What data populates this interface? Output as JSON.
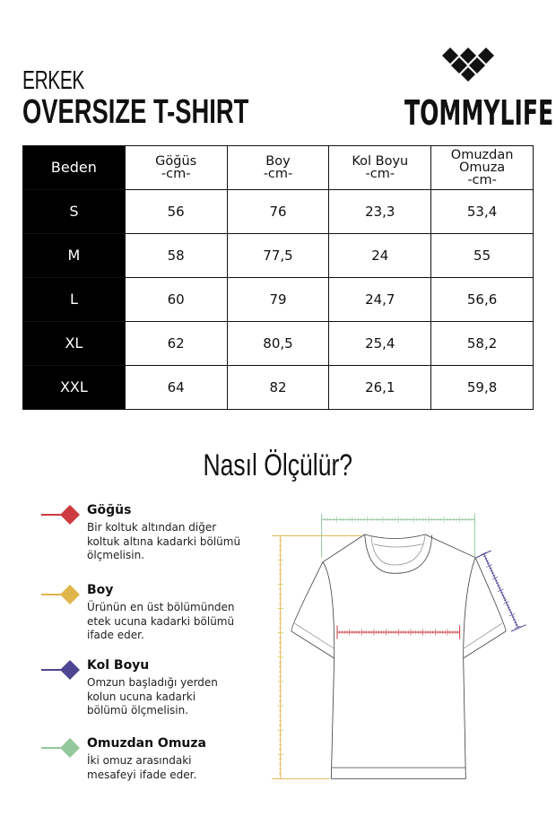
{
  "header": {
    "subtitle": "ERKEK",
    "title": "OVERSIZE T-SHIRT",
    "brand": "TOMMYLIFE",
    "logo": "diamond-cluster-logo"
  },
  "table": {
    "columns": [
      "Beden",
      [
        "Göğüs",
        "-cm-"
      ],
      [
        "Boy",
        "-cm-"
      ],
      [
        "Kol Boyu",
        "-cm-"
      ],
      [
        "Omuzdan",
        "Omuza",
        "-cm-"
      ]
    ],
    "rows": [
      [
        "S",
        "56",
        "76",
        "23,3",
        "53,4"
      ],
      [
        "M",
        "58",
        "77,5",
        "24",
        "55"
      ],
      [
        "L",
        "60",
        "79",
        "24,7",
        "56,6"
      ],
      [
        "XL",
        "62",
        "80,5",
        "25,4",
        "58,2"
      ],
      [
        "XXL",
        "64",
        "82",
        "26,1",
        "59,8"
      ]
    ]
  },
  "guide": {
    "title": "Nasıl Ölçülür?",
    "items": [
      {
        "title": "Göğüs",
        "desc": [
          "Bir koltuk altından diğer",
          "koltuk altına kadarki bölümü",
          "ölçmelisin."
        ],
        "color": "#cc3b3f"
      },
      {
        "title": "Boy",
        "desc": [
          "Ürünün en üst bölümünden",
          "etek ucuna kadarki bölümü",
          "ifade eder."
        ],
        "color": "#e0b64c"
      },
      {
        "title": "Kol Boyu",
        "desc": [
          "Omzun başladığı yerden",
          "kolun ucuna kadarki",
          "bölümü ölçmelisin."
        ],
        "color": "#4f4593"
      },
      {
        "title": "Omuzdan Omuza",
        "desc": [
          "İki omuz arasındaki",
          "mesafeyi ifade eder."
        ],
        "color": "#94c79c"
      }
    ]
  }
}
